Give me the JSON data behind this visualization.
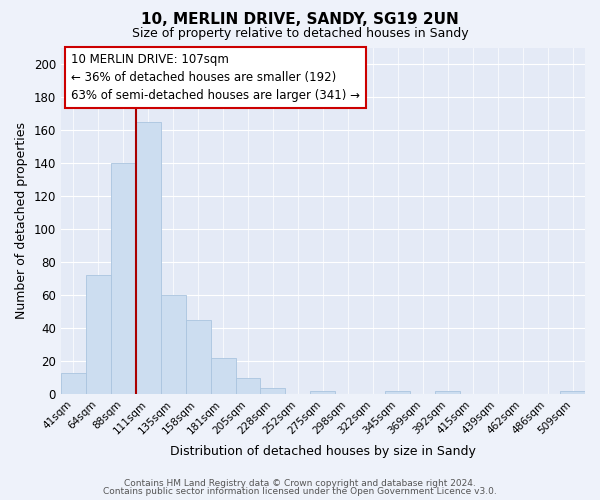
{
  "title": "10, MERLIN DRIVE, SANDY, SG19 2UN",
  "subtitle": "Size of property relative to detached houses in Sandy",
  "xlabel": "Distribution of detached houses by size in Sandy",
  "ylabel": "Number of detached properties",
  "bar_color": "#ccddf0",
  "bar_edge_color": "#aac4df",
  "bin_labels": [
    "41sqm",
    "64sqm",
    "88sqm",
    "111sqm",
    "135sqm",
    "158sqm",
    "181sqm",
    "205sqm",
    "228sqm",
    "252sqm",
    "275sqm",
    "298sqm",
    "322sqm",
    "345sqm",
    "369sqm",
    "392sqm",
    "415sqm",
    "439sqm",
    "462sqm",
    "486sqm",
    "509sqm"
  ],
  "bar_heights": [
    13,
    72,
    140,
    165,
    60,
    45,
    22,
    10,
    4,
    0,
    2,
    0,
    0,
    2,
    0,
    2,
    0,
    0,
    0,
    0,
    2
  ],
  "vline_color": "#aa0000",
  "ylim": [
    0,
    210
  ],
  "yticks": [
    0,
    20,
    40,
    60,
    80,
    100,
    120,
    140,
    160,
    180,
    200
  ],
  "annotation_title": "10 MERLIN DRIVE: 107sqm",
  "annotation_line1": "← 36% of detached houses are smaller (192)",
  "annotation_line2": "63% of semi-detached houses are larger (341) →",
  "annotation_box_color": "#ffffff",
  "annotation_box_edge_color": "#cc0000",
  "footer_line1": "Contains HM Land Registry data © Crown copyright and database right 2024.",
  "footer_line2": "Contains public sector information licensed under the Open Government Licence v3.0.",
  "background_color": "#eef2fa",
  "plot_background_color": "#e4eaf6"
}
